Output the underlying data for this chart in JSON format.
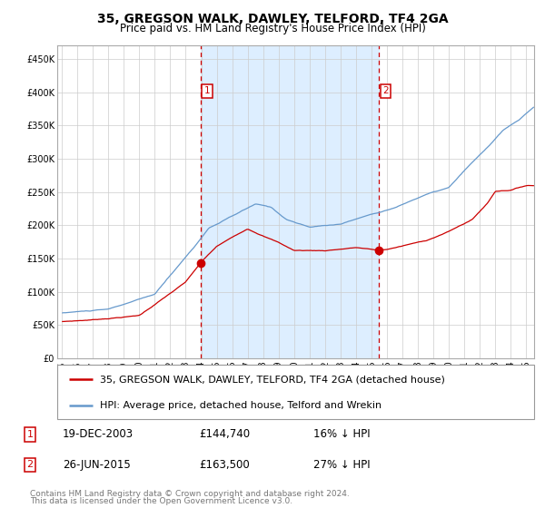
{
  "title": "35, GREGSON WALK, DAWLEY, TELFORD, TF4 2GA",
  "subtitle": "Price paid vs. HM Land Registry's House Price Index (HPI)",
  "legend_line1": "35, GREGSON WALK, DAWLEY, TELFORD, TF4 2GA (detached house)",
  "legend_line2": "HPI: Average price, detached house, Telford and Wrekin",
  "transaction1_date": "19-DEC-2003",
  "transaction1_price": 144740,
  "transaction1_hpi": "16% ↓ HPI",
  "transaction2_date": "26-JUN-2015",
  "transaction2_price": 163500,
  "transaction2_hpi": "27% ↓ HPI",
  "footnote1": "Contains HM Land Registry data © Crown copyright and database right 2024.",
  "footnote2": "This data is licensed under the Open Government Licence v3.0.",
  "red_color": "#cc0000",
  "blue_color": "#6699cc",
  "fill_color": "#ddeeff",
  "background_color": "#ffffff",
  "grid_color": "#cccccc",
  "ylim": [
    0,
    470000
  ],
  "yticks": [
    0,
    50000,
    100000,
    150000,
    200000,
    250000,
    300000,
    350000,
    400000,
    450000
  ],
  "xlim_start": 1994.7,
  "xlim_end": 2025.5,
  "t1_year_val": 2003.96,
  "t2_year_val": 2015.46
}
